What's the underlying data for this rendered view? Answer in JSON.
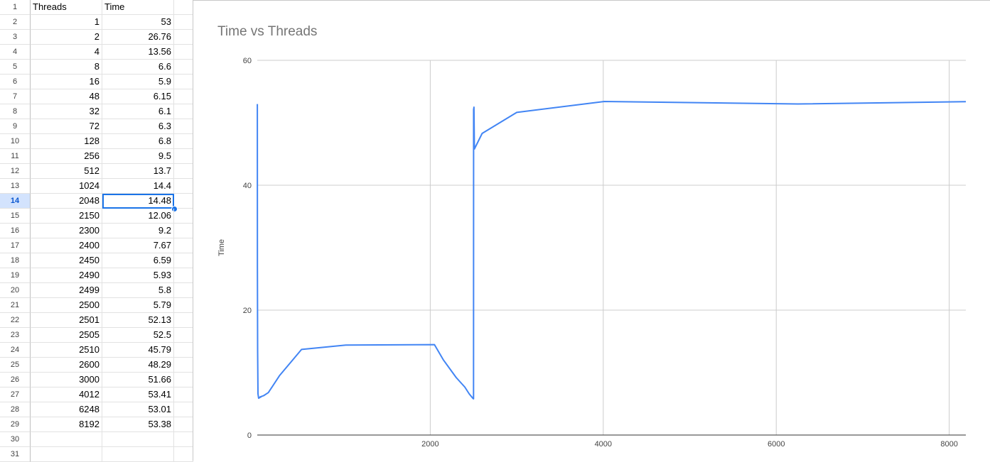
{
  "sheet": {
    "headers": [
      "Threads",
      "Time"
    ],
    "row_numbers": [
      "1",
      "2",
      "3",
      "4",
      "5",
      "6",
      "7",
      "8",
      "9",
      "10",
      "11",
      "12",
      "13",
      "14",
      "15",
      "16",
      "17",
      "18",
      "19",
      "20",
      "21",
      "22",
      "23",
      "24",
      "25",
      "26",
      "27",
      "28",
      "29",
      "30",
      "31"
    ],
    "rows": [
      [
        "1",
        "53"
      ],
      [
        "2",
        "26.76"
      ],
      [
        "4",
        "13.56"
      ],
      [
        "8",
        "6.6"
      ],
      [
        "16",
        "5.9"
      ],
      [
        "48",
        "6.15"
      ],
      [
        "32",
        "6.1"
      ],
      [
        "72",
        "6.3"
      ],
      [
        "128",
        "6.8"
      ],
      [
        "256",
        "9.5"
      ],
      [
        "512",
        "13.7"
      ],
      [
        "1024",
        "14.4"
      ],
      [
        "2048",
        "14.48"
      ],
      [
        "2150",
        "12.06"
      ],
      [
        "2300",
        "9.2"
      ],
      [
        "2400",
        "7.67"
      ],
      [
        "2450",
        "6.59"
      ],
      [
        "2490",
        "5.93"
      ],
      [
        "2499",
        "5.8"
      ],
      [
        "2500",
        "5.79"
      ],
      [
        "2501",
        "52.13"
      ],
      [
        "2505",
        "52.5"
      ],
      [
        "2510",
        "45.79"
      ],
      [
        "2600",
        "48.29"
      ],
      [
        "3000",
        "51.66"
      ],
      [
        "4012",
        "53.41"
      ],
      [
        "6248",
        "53.01"
      ],
      [
        "8192",
        "53.38"
      ]
    ],
    "active_row": "14",
    "selected_cell_value": "14.48"
  },
  "chart_data": {
    "type": "line",
    "title": "Time vs Threads",
    "xlabel": "",
    "ylabel": "Time",
    "xlim": [
      0,
      8192
    ],
    "ylim": [
      0,
      60
    ],
    "x_ticks": [
      "2000",
      "4000",
      "6000",
      "8000"
    ],
    "y_ticks": [
      "0",
      "20",
      "40",
      "60"
    ],
    "grid": true,
    "line_color": "#4285f4",
    "series": [
      {
        "x": [
          1,
          2,
          4,
          8,
          16,
          48,
          32,
          72,
          128,
          256,
          512,
          1024,
          2048,
          2150,
          2300,
          2400,
          2450,
          2490,
          2499,
          2500,
          2501,
          2505,
          2510,
          2600,
          3000,
          4012,
          6248,
          8192
        ],
        "y": [
          53,
          26.76,
          13.56,
          6.6,
          5.9,
          6.15,
          6.1,
          6.3,
          6.8,
          9.5,
          13.7,
          14.4,
          14.48,
          12.06,
          9.2,
          7.67,
          6.59,
          5.93,
          5.8,
          5.79,
          52.13,
          52.5,
          45.79,
          48.29,
          51.66,
          53.41,
          53.01,
          53.38
        ]
      }
    ]
  }
}
